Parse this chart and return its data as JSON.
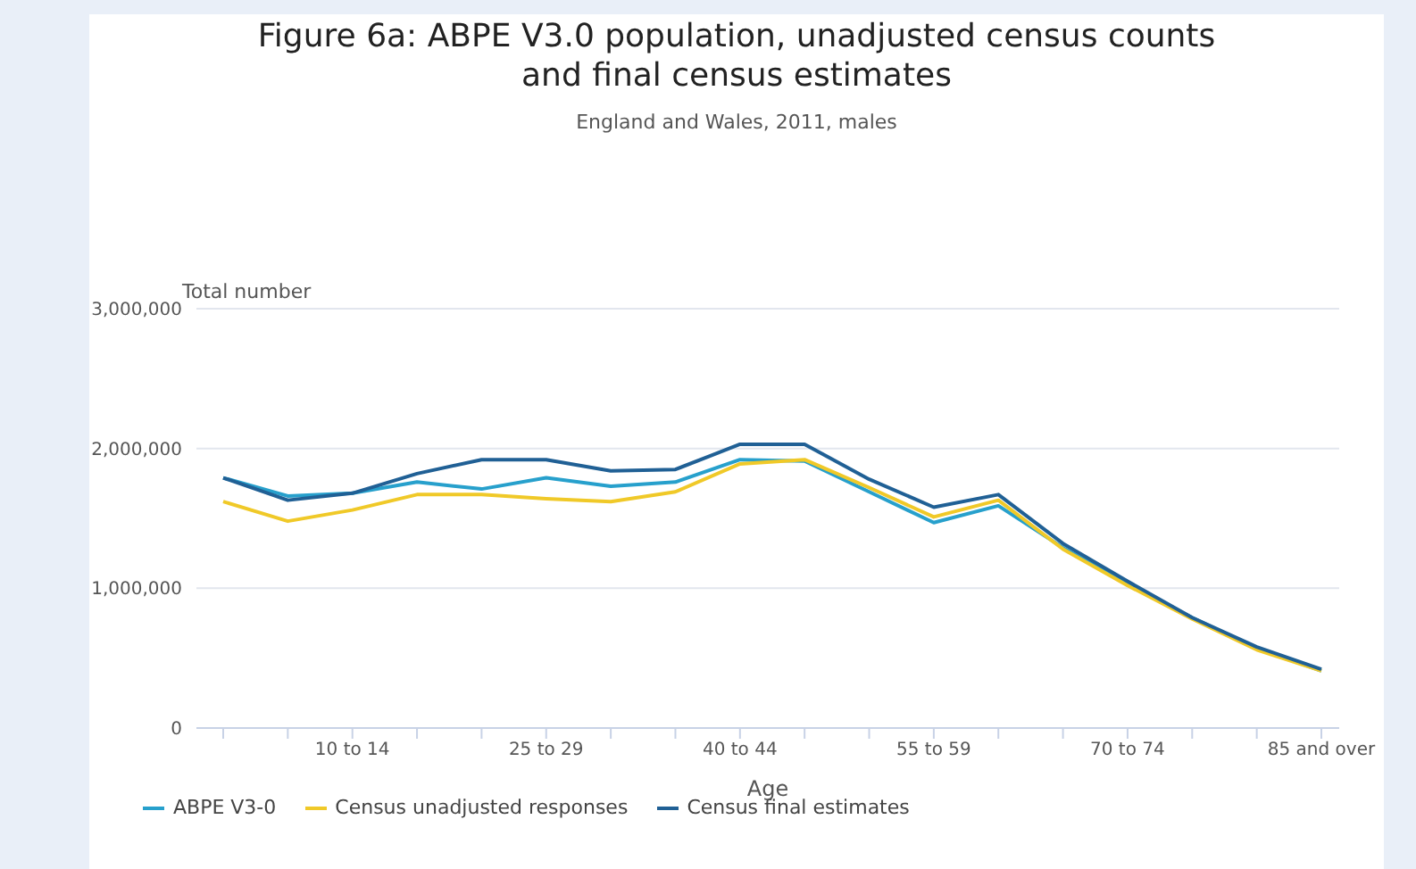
{
  "chart_data": {
    "type": "line",
    "title": "Figure 6a: ABPE V3.0 population, unadjusted census counts and final census estimates",
    "subtitle": "England and Wales, 2011, males",
    "xlabel": "Age",
    "ylabel": "Total number",
    "categories": [
      null,
      null,
      "10 to 14",
      null,
      null,
      "25 to 29",
      null,
      null,
      "40 to 44",
      null,
      null,
      "55 to 59",
      null,
      null,
      "70 to 74",
      null,
      null,
      "85 and over"
    ],
    "series": [
      {
        "name": "ABPE V3-0",
        "color": "#27a0cc",
        "values": [
          1790000,
          1660000,
          1680000,
          1760000,
          1710000,
          1790000,
          1730000,
          1760000,
          1920000,
          1910000,
          1690000,
          1470000,
          1590000,
          1290000,
          1030000,
          790000,
          570000,
          410000
        ]
      },
      {
        "name": "Census unadjusted responses",
        "color": "#f0c928",
        "values": [
          1620000,
          1480000,
          1560000,
          1670000,
          1670000,
          1640000,
          1620000,
          1690000,
          1890000,
          1920000,
          1720000,
          1510000,
          1630000,
          1280000,
          1020000,
          780000,
          560000,
          410000
        ]
      },
      {
        "name": "Census final estimates",
        "color": "#206095",
        "values": [
          1790000,
          1630000,
          1680000,
          1820000,
          1920000,
          1920000,
          1840000,
          1850000,
          2030000,
          2030000,
          1780000,
          1580000,
          1670000,
          1320000,
          1050000,
          790000,
          580000,
          420000
        ]
      }
    ],
    "ylim": [
      0,
      3000000
    ],
    "yticks": [
      0,
      {
        "value": 1000000,
        "label": "1,000,000"
      },
      {
        "value": 2000000,
        "label": "2,000,000"
      },
      {
        "value": 3000000,
        "label": "3,000,000"
      }
    ],
    "grid": "y",
    "legend": "bottom",
    "marker": "none",
    "line_style": "solid"
  }
}
